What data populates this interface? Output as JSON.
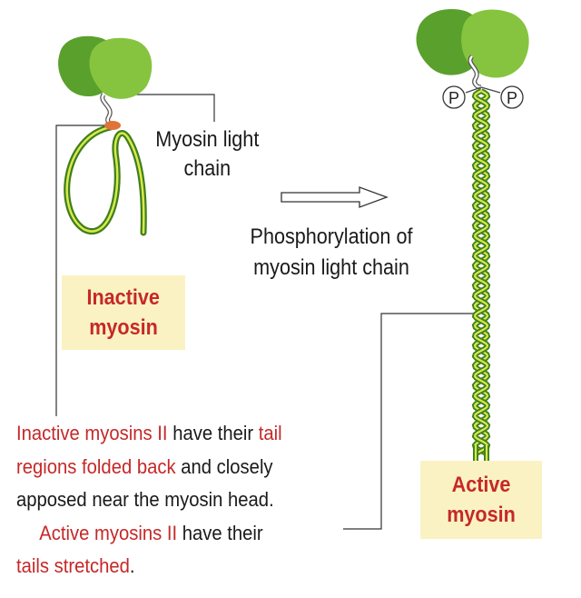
{
  "labels": {
    "light_chain": [
      "Myosin light",
      "chain"
    ],
    "phosphorylation": [
      "Phosphorylation of",
      "myosin light chain"
    ],
    "phosphate": "P"
  },
  "boxes": {
    "inactive": [
      "Inactive",
      "myosin"
    ],
    "active": [
      "Active",
      "myosin"
    ]
  },
  "caption": {
    "line1": [
      {
        "text": "Inactive myosins II",
        "red": true
      },
      {
        "text": " have their ",
        "red": false
      },
      {
        "text": "tail",
        "red": true
      }
    ],
    "line2": [
      {
        "text": "regions folded back",
        "red": true
      },
      {
        "text": " and closely",
        "red": false
      }
    ],
    "line3": [
      {
        "text": "apposed near the myosin head.",
        "red": false
      }
    ],
    "line4": [
      {
        "text": "Active myosins II",
        "red": true
      },
      {
        "text": " have their",
        "red": false
      }
    ],
    "line5": [
      {
        "text": "tails stretched",
        "red": true
      },
      {
        "text": ".",
        "red": false
      }
    ]
  },
  "colors": {
    "head_dark": "#5aa02c",
    "head_light": "#86c43f",
    "tail_dark": "#3f7f1e",
    "tail_light": "#d9e94a",
    "accent_red": "#c62828",
    "box_fill": "#fbf2c4"
  }
}
